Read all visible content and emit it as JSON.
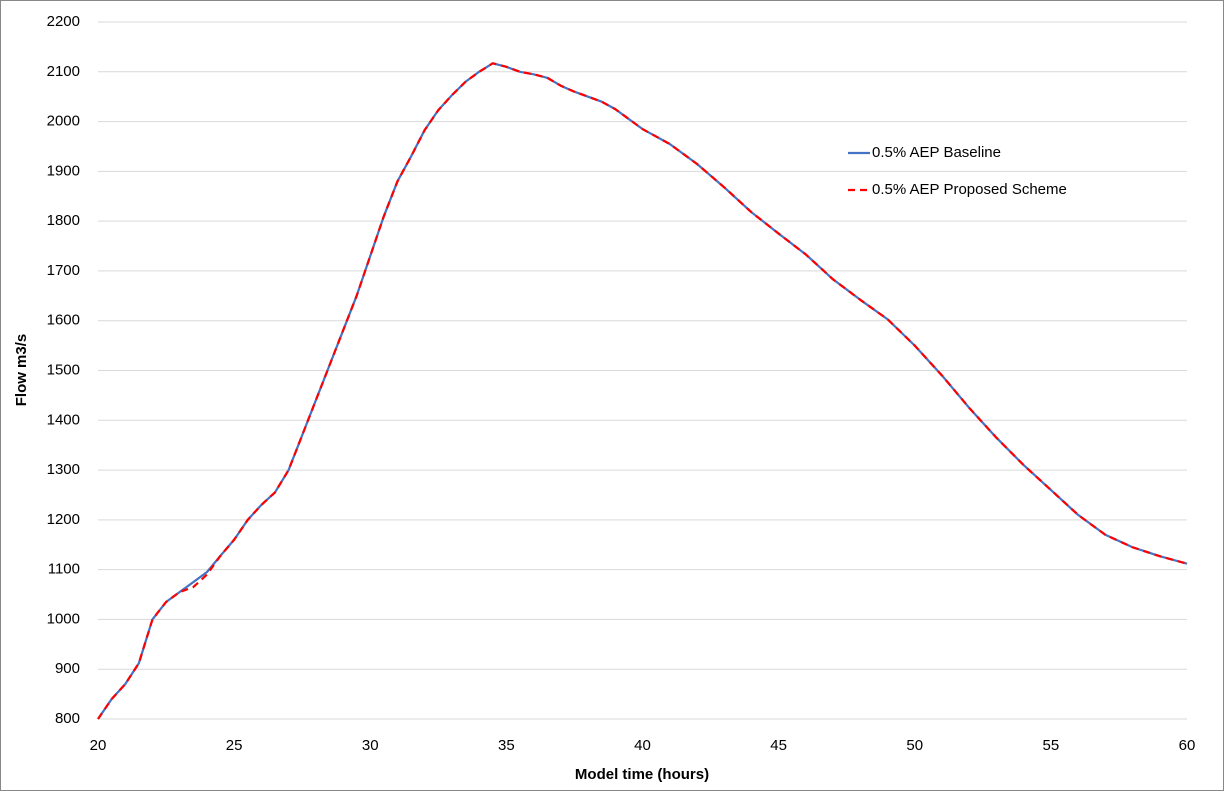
{
  "chart_data": {
    "type": "line",
    "xlabel": "Model time (hours)",
    "ylabel": "Flow m3/s",
    "x": [
      20,
      20.5,
      21,
      21.5,
      22,
      22.5,
      23,
      23.5,
      24,
      24.5,
      25,
      25.5,
      26,
      26.5,
      27,
      27.5,
      28,
      28.5,
      29,
      29.5,
      30,
      30.5,
      31,
      31.5,
      32,
      32.5,
      33,
      33.5,
      34,
      34.5,
      35,
      35.5,
      36,
      36.5,
      37,
      37.5,
      38,
      38.5,
      39,
      39.5,
      40,
      41,
      42,
      43,
      44,
      45,
      46,
      47,
      48,
      49,
      50,
      51,
      52,
      53,
      54,
      55,
      56,
      57,
      58,
      59,
      60
    ],
    "series": [
      {
        "name": "0.5% AEP Baseline",
        "color": "#4472c4",
        "linestyle": "solid",
        "values": [
          800,
          840,
          870,
          912,
          1000,
          1035,
          1055,
          1075,
          1095,
          1128,
          1160,
          1200,
          1230,
          1255,
          1300,
          1370,
          1440,
          1510,
          1580,
          1650,
          1730,
          1810,
          1880,
          1930,
          1983,
          2023,
          2053,
          2080,
          2100,
          2117,
          2110,
          2100,
          2095,
          2088,
          2072,
          2060,
          2050,
          2040,
          2025,
          2005,
          1985,
          1955,
          1915,
          1868,
          1818,
          1775,
          1733,
          1683,
          1642,
          1603,
          1550,
          1490,
          1425,
          1365,
          1310,
          1260,
          1210,
          1170,
          1145,
          1127,
          1112
        ]
      },
      {
        "name": "0.5% AEP Proposed Scheme",
        "color": "#ff0000",
        "linestyle": "dashed",
        "values": [
          800,
          840,
          870,
          912,
          1000,
          1035,
          1055,
          1065,
          1090,
          1128,
          1160,
          1200,
          1230,
          1255,
          1300,
          1370,
          1440,
          1510,
          1580,
          1650,
          1730,
          1810,
          1880,
          1930,
          1983,
          2023,
          2053,
          2080,
          2100,
          2117,
          2110,
          2100,
          2095,
          2088,
          2072,
          2060,
          2050,
          2040,
          2025,
          2005,
          1985,
          1955,
          1915,
          1868,
          1818,
          1775,
          1733,
          1683,
          1642,
          1603,
          1550,
          1490,
          1425,
          1365,
          1310,
          1260,
          1210,
          1170,
          1145,
          1127,
          1112
        ]
      }
    ],
    "xlim": [
      20,
      60
    ],
    "xticks": [
      20,
      25,
      30,
      35,
      40,
      45,
      50,
      55,
      60
    ],
    "ylim": [
      800,
      2200
    ],
    "yticks": [
      800,
      900,
      1000,
      1100,
      1200,
      1300,
      1400,
      1500,
      1600,
      1700,
      1800,
      1900,
      2000,
      2100,
      2200
    ],
    "grid": true,
    "legend": "upper right"
  }
}
